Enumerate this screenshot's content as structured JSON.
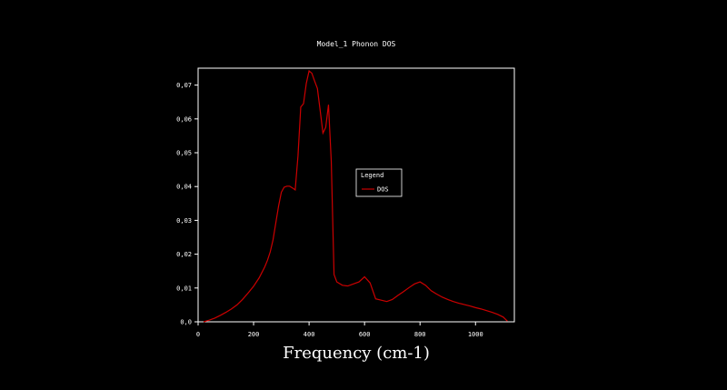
{
  "chart_data": {
    "type": "line",
    "title": "Model_1 Phonon DOS",
    "xlabel": "Frequency (cm-1)",
    "ylabel": "",
    "xlim": [
      0,
      1140
    ],
    "ylim": [
      0,
      0.075
    ],
    "xticks": [
      0,
      200,
      400,
      600,
      800,
      1000
    ],
    "xtick_labels": [
      "0",
      "200",
      "400",
      "600",
      "800",
      "1000"
    ],
    "yticks": [
      0,
      0.01,
      0.02,
      0.03,
      0.04,
      0.05,
      0.06,
      0.07
    ],
    "ytick_labels": [
      "0,0",
      "0,01",
      "0,02",
      "0,03",
      "0,04",
      "0,05",
      "0,06",
      "0,07"
    ],
    "grid": false,
    "legend": {
      "title": "Legend",
      "placement": "center-right"
    },
    "series": [
      {
        "name": "DOS",
        "color": "#cc0000",
        "x": [
          20,
          40,
          60,
          80,
          100,
          120,
          140,
          160,
          180,
          200,
          220,
          240,
          250,
          260,
          270,
          280,
          290,
          300,
          310,
          320,
          330,
          340,
          350,
          360,
          370,
          380,
          390,
          400,
          410,
          420,
          430,
          440,
          450,
          460,
          470,
          480,
          490,
          500,
          520,
          540,
          560,
          580,
          600,
          620,
          640,
          660,
          680,
          700,
          720,
          740,
          760,
          780,
          800,
          820,
          840,
          860,
          880,
          900,
          920,
          940,
          960,
          980,
          1000,
          1020,
          1040,
          1060,
          1080,
          1100,
          1115
        ],
        "y": [
          0.0,
          0.0005,
          0.0011,
          0.0019,
          0.0028,
          0.0038,
          0.005,
          0.0066,
          0.0085,
          0.0105,
          0.013,
          0.0162,
          0.0182,
          0.0207,
          0.0242,
          0.0292,
          0.0342,
          0.0383,
          0.0398,
          0.0401,
          0.0401,
          0.0396,
          0.039,
          0.049,
          0.0635,
          0.0645,
          0.0705,
          0.0742,
          0.0735,
          0.0712,
          0.069,
          0.0625,
          0.0558,
          0.0575,
          0.0642,
          0.0475,
          0.014,
          0.0118,
          0.0108,
          0.0106,
          0.0112,
          0.0118,
          0.0133,
          0.0115,
          0.0068,
          0.0064,
          0.006,
          0.0066,
          0.0078,
          0.0089,
          0.0101,
          0.0112,
          0.0118,
          0.0108,
          0.0092,
          0.0082,
          0.0073,
          0.0066,
          0.006,
          0.0055,
          0.0051,
          0.0047,
          0.0042,
          0.0038,
          0.0033,
          0.0028,
          0.0022,
          0.0014,
          0.0002
        ]
      }
    ]
  }
}
